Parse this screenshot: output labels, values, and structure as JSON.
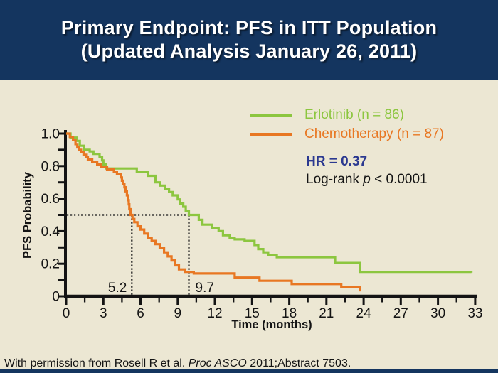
{
  "slide": {
    "title_line1": "Primary Endpoint: PFS in ITT Population",
    "title_line2": "(Updated Analysis January 26, 2011)",
    "footer_prefix": "With permission from Rosell R et al. ",
    "footer_italic": "Proc ASCO",
    "footer_suffix": " 2011;Abstract 7503."
  },
  "colors": {
    "navy": "#14355F",
    "beige": "#ECE7D3",
    "erlotinib_green": "#8CC63F",
    "chemo_orange": "#E87722",
    "hr_blue": "#2B3990",
    "axis": "#141414",
    "title_text": "#FFFFFF"
  },
  "legend": {
    "items": [
      {
        "label": "Erlotinib (n = 86)",
        "color": "#8CC63F"
      },
      {
        "label": "Chemotherapy (n = 87)",
        "color": "#E87722"
      }
    ]
  },
  "stats": {
    "hr": "HR = 0.37",
    "logrank_prefix": "Log-rank ",
    "logrank_p": "p",
    "logrank_suffix": " < 0.0001"
  },
  "chart_data": {
    "type": "line",
    "subtype": "kaplan_meier_step",
    "xlabel": "Time (months)",
    "ylabel": "PFS Probability",
    "xlim": [
      0,
      33
    ],
    "ylim": [
      0,
      1.0
    ],
    "x_ticks": [
      0,
      3,
      6,
      9,
      12,
      15,
      18,
      21,
      24,
      27,
      30,
      33
    ],
    "y_ticks": [
      1.0,
      0.8,
      0.6,
      0.4,
      0.2,
      0
    ],
    "y_tick_labels": [
      "1.0",
      "0.8",
      "0.6",
      "0.4",
      "0.2",
      "0"
    ],
    "grid": false,
    "legend_position": "upper right",
    "median_line_y": 0.5,
    "median_annotations": [
      {
        "label": "5.2",
        "x": 5.3,
        "side": "left"
      },
      {
        "label": "9.7",
        "x": 9.9,
        "side": "right"
      }
    ],
    "series": [
      {
        "name": "Erlotinib (n = 86)",
        "n": 86,
        "color": "#8CC63F",
        "median_pfs_months": 9.7,
        "points": [
          [
            0,
            1.0
          ],
          [
            0.35,
            0.975
          ],
          [
            0.85,
            0.955
          ],
          [
            1.1,
            0.925
          ],
          [
            1.45,
            0.9
          ],
          [
            1.9,
            0.89
          ],
          [
            2.2,
            0.875
          ],
          [
            2.7,
            0.855
          ],
          [
            2.9,
            0.835
          ],
          [
            3.0,
            0.81
          ],
          [
            3.2,
            0.785
          ],
          [
            5.7,
            0.765
          ],
          [
            6.6,
            0.74
          ],
          [
            7.2,
            0.7
          ],
          [
            7.6,
            0.68
          ],
          [
            8.0,
            0.66
          ],
          [
            8.3,
            0.64
          ],
          [
            8.6,
            0.62
          ],
          [
            9.0,
            0.595
          ],
          [
            9.2,
            0.57
          ],
          [
            9.45,
            0.55
          ],
          [
            9.65,
            0.525
          ],
          [
            9.9,
            0.5
          ],
          [
            10.7,
            0.47
          ],
          [
            11.0,
            0.44
          ],
          [
            11.75,
            0.42
          ],
          [
            12.3,
            0.4
          ],
          [
            12.65,
            0.375
          ],
          [
            13.2,
            0.36
          ],
          [
            13.6,
            0.35
          ],
          [
            14.4,
            0.34
          ],
          [
            15.2,
            0.315
          ],
          [
            15.5,
            0.29
          ],
          [
            15.9,
            0.27
          ],
          [
            16.3,
            0.255
          ],
          [
            17.0,
            0.24
          ],
          [
            21.7,
            0.205
          ],
          [
            23.7,
            0.15
          ],
          [
            32.7,
            0.145
          ]
        ]
      },
      {
        "name": "Chemotherapy (n = 87)",
        "n": 87,
        "color": "#E87722",
        "median_pfs_months": 5.2,
        "points": [
          [
            0,
            1.0
          ],
          [
            0.3,
            0.98
          ],
          [
            0.55,
            0.96
          ],
          [
            0.75,
            0.935
          ],
          [
            0.9,
            0.915
          ],
          [
            1.05,
            0.9
          ],
          [
            1.2,
            0.885
          ],
          [
            1.4,
            0.87
          ],
          [
            1.6,
            0.855
          ],
          [
            1.75,
            0.84
          ],
          [
            2.1,
            0.825
          ],
          [
            2.5,
            0.81
          ],
          [
            2.8,
            0.795
          ],
          [
            3.3,
            0.78
          ],
          [
            3.85,
            0.765
          ],
          [
            4.1,
            0.75
          ],
          [
            4.4,
            0.73
          ],
          [
            4.5,
            0.71
          ],
          [
            4.6,
            0.69
          ],
          [
            4.7,
            0.67
          ],
          [
            4.8,
            0.645
          ],
          [
            4.9,
            0.62
          ],
          [
            5.0,
            0.59
          ],
          [
            5.05,
            0.565
          ],
          [
            5.1,
            0.535
          ],
          [
            5.2,
            0.5
          ],
          [
            5.35,
            0.475
          ],
          [
            5.5,
            0.455
          ],
          [
            5.75,
            0.43
          ],
          [
            6.0,
            0.41
          ],
          [
            6.3,
            0.385
          ],
          [
            6.6,
            0.36
          ],
          [
            6.9,
            0.34
          ],
          [
            7.2,
            0.32
          ],
          [
            7.55,
            0.295
          ],
          [
            7.9,
            0.27
          ],
          [
            8.2,
            0.245
          ],
          [
            8.5,
            0.22
          ],
          [
            8.8,
            0.19
          ],
          [
            9.1,
            0.165
          ],
          [
            9.6,
            0.15
          ],
          [
            10.3,
            0.14
          ],
          [
            13.6,
            0.115
          ],
          [
            15.6,
            0.095
          ],
          [
            18.2,
            0.075
          ],
          [
            22.2,
            0.055
          ],
          [
            23.7,
            0.03
          ]
        ]
      }
    ],
    "hr_annotation": "HR = 0.37",
    "p_annotation": "Log-rank p < 0.0001"
  }
}
